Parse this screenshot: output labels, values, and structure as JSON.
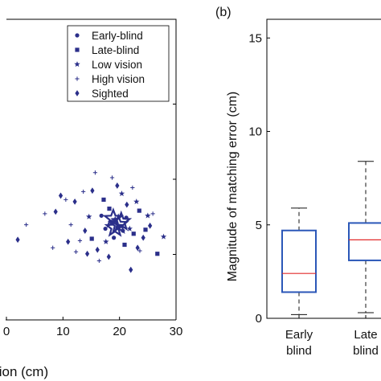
{
  "chart_data": [
    {
      "type": "scatter",
      "panel_label": "",
      "xlabel": "tion (cm)",
      "ylabel": "",
      "xlim": [
        0,
        30
      ],
      "x_ticks": [
        0,
        10,
        20,
        30
      ],
      "x_tick_labels": [
        "0",
        "10",
        "20",
        "30"
      ],
      "ylim": [
        0,
        30
      ],
      "legend": {
        "placement": "top-right",
        "entries": [
          {
            "label": "Early-blind",
            "marker": "dot"
          },
          {
            "label": "Late-blind",
            "marker": "square"
          },
          {
            "label": "Low vision",
            "marker": "star"
          },
          {
            "label": "High vision",
            "marker": "plus"
          },
          {
            "label": "Sighted",
            "marker": "diamond"
          }
        ]
      },
      "colors": {
        "points": "#2b2f8a"
      },
      "series": [
        {
          "name": "Early-blind",
          "marker": "dot",
          "points": [
            [
              19.8,
              9.3
            ],
            [
              18.6,
              9.8
            ],
            [
              20.6,
              8.9
            ],
            [
              17.5,
              9.1
            ],
            [
              21.2,
              10.2
            ],
            [
              19.0,
              8.2
            ],
            [
              16.8,
              10.4
            ]
          ]
        },
        {
          "name": "Late-blind",
          "marker": "square",
          "points": [
            [
              26.7,
              6.6
            ],
            [
              22.5,
              8.6
            ],
            [
              18.2,
              11.1
            ],
            [
              24.6,
              9.0
            ],
            [
              15.1,
              8.1
            ],
            [
              20.9,
              7.5
            ],
            [
              17.2,
              12.0
            ],
            [
              23.5,
              10.9
            ]
          ]
        },
        {
          "name": "Low vision",
          "marker": "star",
          "points": [
            [
              27.8,
              8.3
            ],
            [
              20.4,
              12.6
            ],
            [
              23.0,
              11.8
            ],
            [
              17.6,
              7.8
            ],
            [
              14.6,
              10.3
            ],
            [
              21.8,
              9.1
            ],
            [
              19.3,
              10.0
            ],
            [
              25.0,
              10.4
            ]
          ]
        },
        {
          "name": "High vision",
          "marker": "plus",
          "points": [
            [
              3.5,
              9.5
            ],
            [
              6.8,
              10.6
            ],
            [
              8.2,
              7.2
            ],
            [
              10.5,
              12.0
            ],
            [
              12.3,
              6.8
            ],
            [
              13.6,
              12.8
            ],
            [
              15.7,
              14.7
            ],
            [
              16.4,
              5.9
            ],
            [
              22.3,
              13.2
            ],
            [
              23.6,
              6.9
            ],
            [
              18.7,
              14.2
            ],
            [
              11.4,
              9.5
            ],
            [
              25.9,
              10.6
            ],
            [
              13.0,
              7.9
            ]
          ]
        },
        {
          "name": "Sighted",
          "marker": "diamond",
          "points": [
            [
              2.0,
              8.0
            ],
            [
              8.7,
              10.8
            ],
            [
              10.9,
              7.8
            ],
            [
              12.1,
              11.8
            ],
            [
              13.9,
              8.9
            ],
            [
              15.2,
              12.9
            ],
            [
              16.1,
              7.0
            ],
            [
              22.0,
              5.0
            ],
            [
              24.2,
              8.2
            ],
            [
              25.4,
              9.4
            ],
            [
              19.6,
              13.4
            ],
            [
              9.6,
              12.4
            ],
            [
              14.3,
              6.6
            ],
            [
              21.3,
              11.5
            ],
            [
              23.2,
              7.2
            ],
            [
              18.1,
              6.3
            ]
          ]
        }
      ],
      "means_overlay": {
        "marker": "large-star",
        "points": [
          [
            19.8,
            9.5
          ],
          [
            19.2,
            9.2
          ],
          [
            20.3,
            9.8
          ],
          [
            18.9,
            10.1
          ]
        ]
      }
    },
    {
      "type": "box",
      "panel_label": "(b)",
      "ylabel": "Magnitude of matching error (cm)",
      "ylim": [
        0,
        16
      ],
      "y_ticks": [
        0,
        5,
        10,
        15
      ],
      "y_tick_labels": [
        "0",
        "5",
        "10",
        "15"
      ],
      "categories": [
        {
          "line1": "Early",
          "line2": "blind"
        },
        {
          "line1": "Late",
          "line2": "blind"
        }
      ],
      "colors": {
        "box": "#2b57b8",
        "median": "#e22b2b",
        "whisker": "#111111"
      },
      "boxes": [
        {
          "whisker_low": 0.2,
          "q1": 1.4,
          "median": 2.4,
          "q3": 4.7,
          "whisker_high": 5.9
        },
        {
          "whisker_low": 0.3,
          "q1": 3.1,
          "median": 4.2,
          "q3": 5.1,
          "whisker_high": 8.4
        }
      ]
    }
  ]
}
